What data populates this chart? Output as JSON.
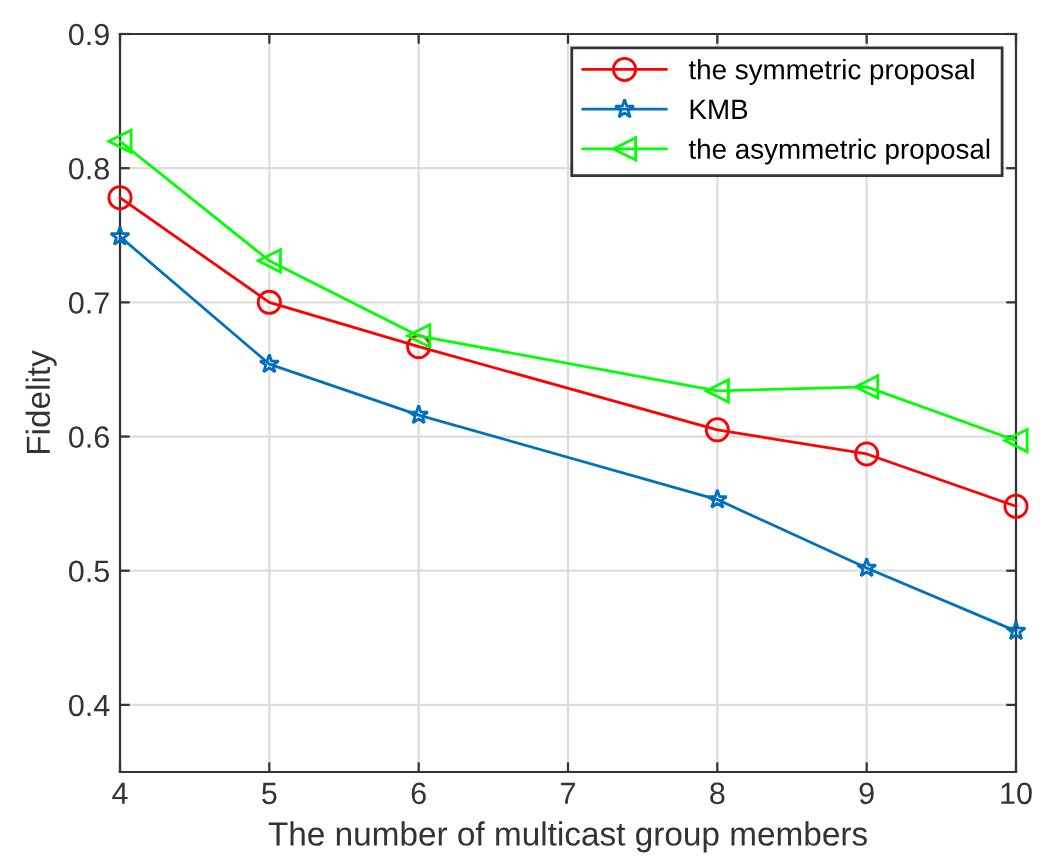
{
  "chart_data": {
    "type": "line",
    "xlabel": "The number of multicast group members",
    "ylabel": "Fidelity",
    "x": [
      4,
      5,
      6,
      8,
      9,
      10
    ],
    "series": [
      {
        "name": "the symmetric proposal",
        "color": "#ff0000",
        "marker": "circle",
        "values": [
          0.778,
          0.7,
          0.667,
          0.605,
          0.587,
          0.548
        ]
      },
      {
        "name": "KMB",
        "color": "#0072bd",
        "marker": "star",
        "values": [
          0.749,
          0.654,
          0.616,
          0.553,
          0.502,
          0.455
        ]
      },
      {
        "name": "the asymmetric proposal",
        "color": "#00ff00",
        "marker": "triangle",
        "values": [
          0.82,
          0.731,
          0.675,
          0.634,
          0.637,
          0.597
        ]
      }
    ],
    "xlim": [
      4,
      10
    ],
    "xticks": [
      4,
      5,
      6,
      7,
      8,
      9,
      10
    ],
    "ylim": [
      0.35,
      0.9
    ],
    "yticks": [
      0.4,
      0.5,
      0.6,
      0.7,
      0.8,
      0.9
    ],
    "grid": true,
    "legend": "top right",
    "line_style": "solid"
  }
}
